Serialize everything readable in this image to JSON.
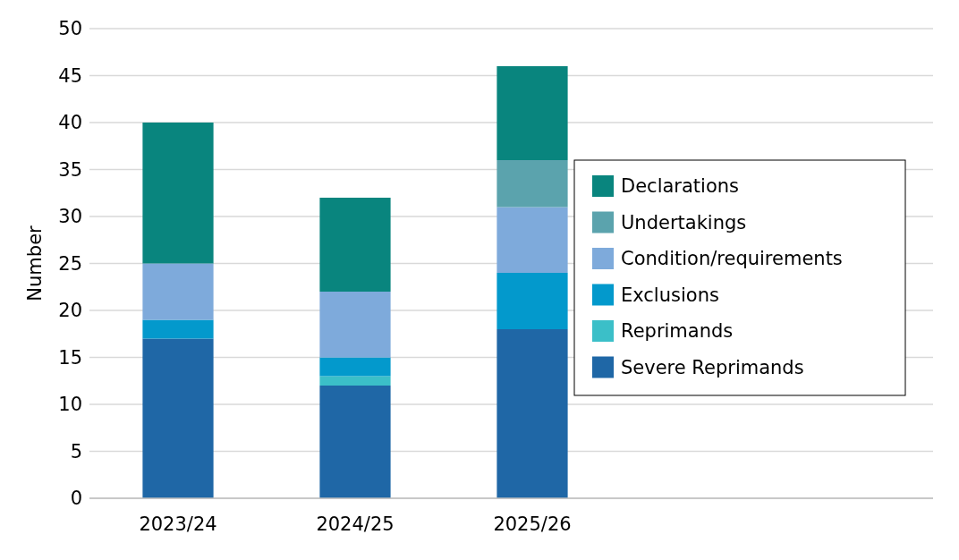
{
  "chart_data": {
    "type": "bar",
    "stacked": true,
    "ylabel": "Number",
    "categories": [
      "2023/24",
      "2024/25",
      "2025/26"
    ],
    "series": [
      {
        "name": "Severe Reprimands",
        "color": "#1f67a6",
        "values": [
          17,
          12,
          18
        ]
      },
      {
        "name": "Reprimands",
        "color": "#3bbfc8",
        "values": [
          0,
          1,
          0
        ]
      },
      {
        "name": "Exclusions",
        "color": "#0399cc",
        "values": [
          2,
          2,
          6
        ]
      },
      {
        "name": "Condition/requirements",
        "color": "#7eaadb",
        "values": [
          6,
          7,
          7
        ]
      },
      {
        "name": "Undertakings",
        "color": "#5ba3ad",
        "values": [
          0,
          0,
          5
        ]
      },
      {
        "name": "Declarations",
        "color": "#09857e",
        "values": [
          15,
          10,
          10
        ]
      }
    ],
    "ylim": [
      0,
      50
    ],
    "yticks": [
      0,
      5,
      10,
      15,
      20,
      25,
      30,
      35,
      40,
      45,
      50
    ],
    "grid": "y",
    "legend": "right"
  }
}
